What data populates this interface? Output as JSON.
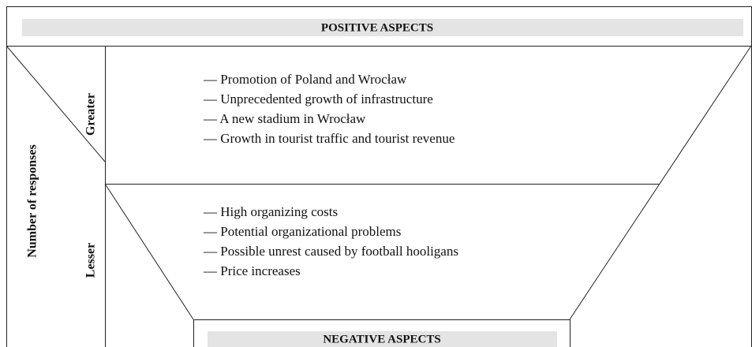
{
  "header": {
    "title": "POSITIVE ASPECTS"
  },
  "axis_label": "Number of responses",
  "levels": [
    {
      "label": "Greater",
      "items": [
        "— Promotion of Poland and Wrocław",
        "— Unprecedented growth of infrastructure",
        "— A new stadium in Wrocław",
        "— Growth in tourist traffic and tourist revenue"
      ]
    },
    {
      "label": "Lesser",
      "items": [
        "— High organizing costs",
        "— Potential organizational problems",
        "— Possible unrest caused by football hooligans",
        "— Price increases"
      ]
    }
  ],
  "footer": {
    "title": "NEGATIVE ASPECTS"
  }
}
